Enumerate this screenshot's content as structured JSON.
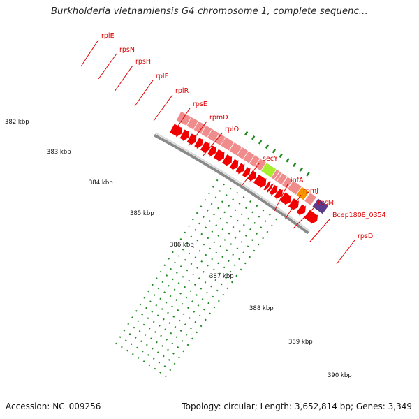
{
  "title": "Burkholderia vietnamiensis G4 chromosome 1, complete sequenc...",
  "footer": {
    "accession": "Accession: NC_009256",
    "summary": "Topology: circular; Length: 3,652,814 bp; Genes: 3,349"
  },
  "colors": {
    "cds": "#f20000",
    "gene": "#f08c8c",
    "secY_product": "#a8ee30",
    "rpsD_product": "#f59500",
    "next_product": "#5a3c8c",
    "backbone": "#8a8a8a",
    "tick": "#1e8a1e",
    "label": "#e00000"
  },
  "map": {
    "kbp_labels": [
      "382 kbp",
      "383 kbp",
      "384 kbp",
      "385 kbp",
      "386 kbp",
      "387 kbp",
      "388 kbp",
      "389 kbp",
      "390 kbp"
    ],
    "genes": [
      {
        "name": "rplE"
      },
      {
        "name": "rpsN"
      },
      {
        "name": "rpsH"
      },
      {
        "name": "rplF"
      },
      {
        "name": "rplR"
      },
      {
        "name": "rpsE"
      },
      {
        "name": "rpmD"
      },
      {
        "name": "rplO"
      },
      {
        "name": "secY"
      },
      {
        "name": "infA"
      },
      {
        "name": "rpmJ"
      },
      {
        "name": "rpsM"
      },
      {
        "name": "Bcep1808_0354"
      },
      {
        "name": "rpsD"
      }
    ]
  }
}
